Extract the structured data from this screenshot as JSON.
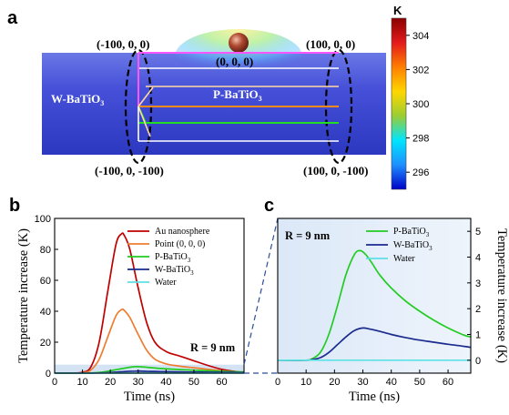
{
  "panel_a": {
    "letter": "a",
    "coords": {
      "top_left": "(-100, 0, 0)",
      "top_right": "(100, 0, 0)",
      "center": "(0, 0, 0)",
      "bottom_left": "(-100, 0, -100)",
      "bottom_right": "(100, 0, -100)"
    },
    "w_label": "W-BaTiO",
    "w_sub": "3",
    "p_label": "P-BaTiO",
    "p_sub": "3",
    "colorbar": {
      "unit": "K",
      "ticks": [
        304,
        302,
        300,
        298,
        296
      ],
      "range": [
        295,
        305
      ],
      "colors": [
        "#8b0000",
        "#e31a1c",
        "#ff7f00",
        "#ffd700",
        "#9acd32",
        "#00e5ff",
        "#1e90ff",
        "#0000c8"
      ]
    }
  },
  "panel_b": {
    "letter": "b",
    "note": "R = 9 nm"
  },
  "panel_c": {
    "letter": "c",
    "note": "R = 9 nm"
  },
  "chart_data": [
    {
      "type": "line",
      "xlabel": "Time (ns)",
      "ylabel": "Temperature increase (K)",
      "xlim": [
        0,
        68
      ],
      "ylim": [
        0,
        100
      ],
      "xticks": [
        0,
        10,
        20,
        30,
        40,
        50,
        60
      ],
      "yticks": [
        0,
        20,
        40,
        60,
        80,
        100
      ],
      "legend_position": "top-right",
      "series": [
        {
          "name": "Au nanosphere",
          "color": "#c00000",
          "x": [
            0,
            5,
            10,
            13,
            16,
            19,
            22,
            24,
            25,
            27,
            30,
            33,
            36,
            40,
            45,
            50,
            55,
            60,
            65,
            68
          ],
          "y": [
            0,
            0,
            0.5,
            4,
            20,
            52,
            83,
            90,
            89,
            80,
            55,
            33,
            20,
            14,
            11,
            8,
            5,
            2.5,
            1,
            0.5
          ]
        },
        {
          "name": "Point (0, 0, 0)",
          "color": "#ed7d31",
          "x": [
            0,
            5,
            10,
            13,
            16,
            19,
            22,
            24,
            25,
            27,
            30,
            33,
            36,
            40,
            45,
            50,
            55,
            60,
            65,
            68
          ],
          "y": [
            0,
            0,
            0.2,
            2,
            9,
            23,
            37,
            41,
            40.5,
            36,
            25,
            15,
            9,
            6,
            4.5,
            3.5,
            2.5,
            1.5,
            0.7,
            0.3
          ]
        },
        {
          "name": "P-BaTiO3",
          "color": "#22cc22",
          "x": [
            0,
            10,
            15,
            20,
            25,
            29,
            33,
            38,
            45,
            50,
            55,
            60,
            65,
            68
          ],
          "y": [
            0,
            0,
            0.3,
            1.5,
            3.2,
            4.2,
            3.8,
            3,
            2.3,
            1.9,
            1.5,
            1.2,
            0.9,
            0.8
          ]
        },
        {
          "name": "W-BaTiO3",
          "color": "#1a2a8f",
          "x": [
            0,
            10,
            15,
            20,
            25,
            29,
            33,
            38,
            45,
            50,
            55,
            60,
            65,
            68
          ],
          "y": [
            0,
            0,
            0.1,
            0.4,
            1,
            1.3,
            1.2,
            1,
            0.8,
            0.7,
            0.6,
            0.55,
            0.45,
            0.4
          ]
        },
        {
          "name": "Water",
          "color": "#5ce1e6",
          "x": [
            0,
            68
          ],
          "y": [
            0,
            0
          ]
        }
      ]
    },
    {
      "type": "line",
      "xlabel": "Time (ns)",
      "ylabel": "Temperature increase (K)",
      "xlim": [
        0,
        68
      ],
      "ylim": [
        -0.5,
        5.5
      ],
      "xticks": [
        0,
        10,
        20,
        30,
        40,
        50,
        60
      ],
      "yticks": [
        0,
        1,
        2,
        3,
        4,
        5
      ],
      "legend_position": "top-right",
      "series": [
        {
          "name": "P-BaTiO3",
          "color": "#22cc22",
          "x": [
            0,
            10,
            12,
            15,
            18,
            21,
            24,
            27,
            29,
            31,
            33,
            36,
            40,
            45,
            50,
            55,
            60,
            65,
            68
          ],
          "y": [
            0,
            0,
            0.05,
            0.3,
            1,
            2.1,
            3.3,
            4.1,
            4.25,
            4.1,
            3.8,
            3.3,
            2.8,
            2.3,
            1.9,
            1.55,
            1.25,
            1.0,
            0.9
          ]
        },
        {
          "name": "W-BaTiO3",
          "color": "#1a2a8f",
          "x": [
            0,
            10,
            12,
            15,
            18,
            21,
            24,
            27,
            30,
            32,
            35,
            40,
            45,
            50,
            55,
            60,
            65,
            68
          ],
          "y": [
            0,
            0,
            0.02,
            0.1,
            0.3,
            0.6,
            0.9,
            1.15,
            1.25,
            1.22,
            1.15,
            1.0,
            0.88,
            0.78,
            0.7,
            0.62,
            0.55,
            0.5
          ]
        },
        {
          "name": "Water",
          "color": "#5ce1e6",
          "x": [
            0,
            68
          ],
          "y": [
            0,
            0
          ]
        }
      ]
    }
  ]
}
